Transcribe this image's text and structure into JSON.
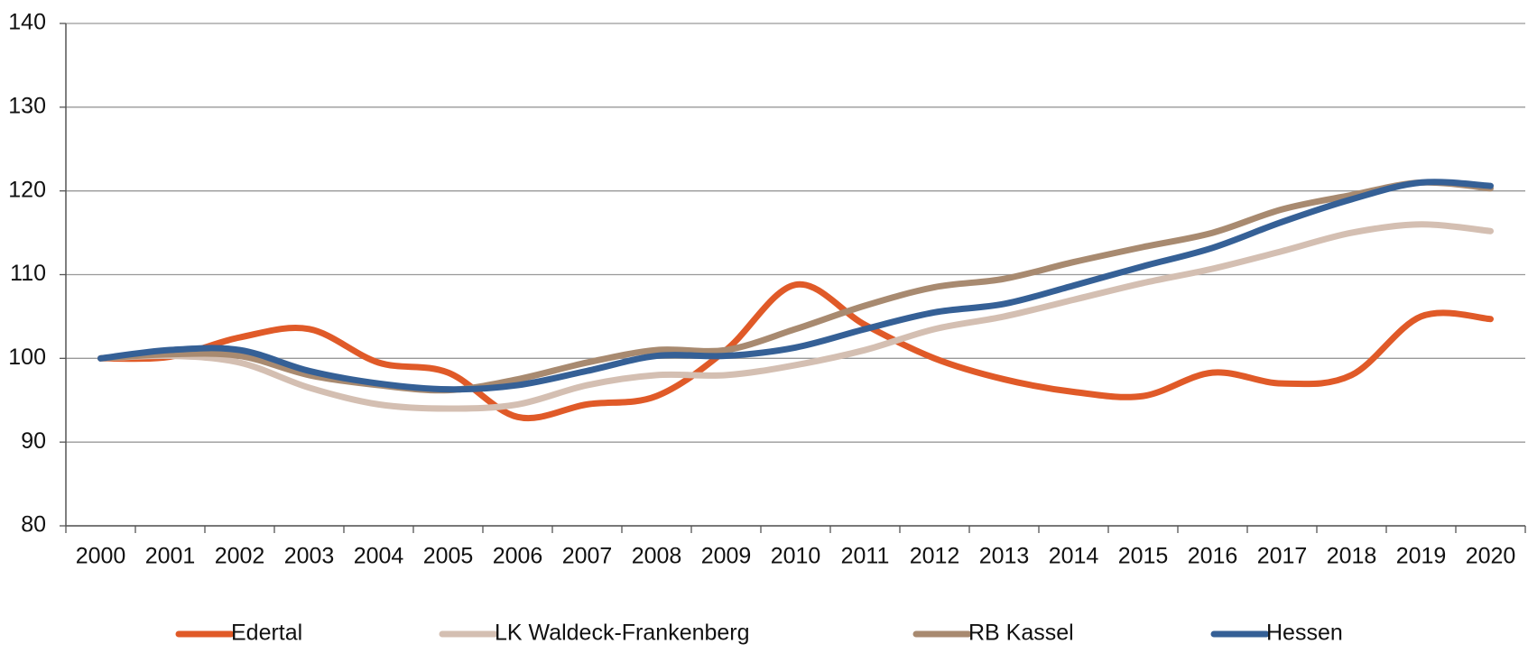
{
  "chart_data": {
    "type": "line",
    "categories": [
      "2000",
      "2001",
      "2002",
      "2003",
      "2004",
      "2005",
      "2006",
      "2007",
      "2008",
      "2009",
      "2010",
      "2011",
      "2012",
      "2013",
      "2014",
      "2015",
      "2016",
      "2017",
      "2018",
      "2019",
      "2020"
    ],
    "series": [
      {
        "name": "Edertal",
        "color": "#e05a28",
        "values": [
          100,
          100.2,
          102.5,
          103.5,
          99.5,
          98.3,
          93,
          94.5,
          95.5,
          101,
          108.8,
          104,
          100,
          97.5,
          96,
          95.5,
          98.3,
          97,
          98,
          105,
          104.7
        ]
      },
      {
        "name": "LK Waldeck-Frankenberg",
        "color": "#d4bfb2",
        "values": [
          100,
          100.3,
          99.5,
          96.5,
          94.5,
          94,
          94.5,
          96.8,
          98,
          98,
          99.2,
          101,
          103.5,
          105,
          107,
          109,
          110.7,
          112.8,
          115,
          116,
          115.2
        ]
      },
      {
        "name": "RB Kassel",
        "color": "#a88a70",
        "values": [
          100,
          100.5,
          100.3,
          98,
          96.8,
          96.2,
          97.5,
          99.5,
          101,
          101,
          103.5,
          106.3,
          108.5,
          109.5,
          111.5,
          113.3,
          115,
          117.8,
          119.5,
          121,
          120.3
        ]
      },
      {
        "name": "Hessen",
        "color": "#356096",
        "values": [
          100,
          101,
          101,
          98.5,
          97,
          96.3,
          96.8,
          98.5,
          100.3,
          100.3,
          101.3,
          103.5,
          105.5,
          106.5,
          108.7,
          111,
          113.2,
          116.3,
          119,
          121,
          120.6
        ]
      }
    ],
    "ylim": [
      80,
      140
    ],
    "yticks": [
      80,
      90,
      100,
      110,
      120,
      130,
      140
    ],
    "grid": true,
    "legend": "bottom"
  }
}
